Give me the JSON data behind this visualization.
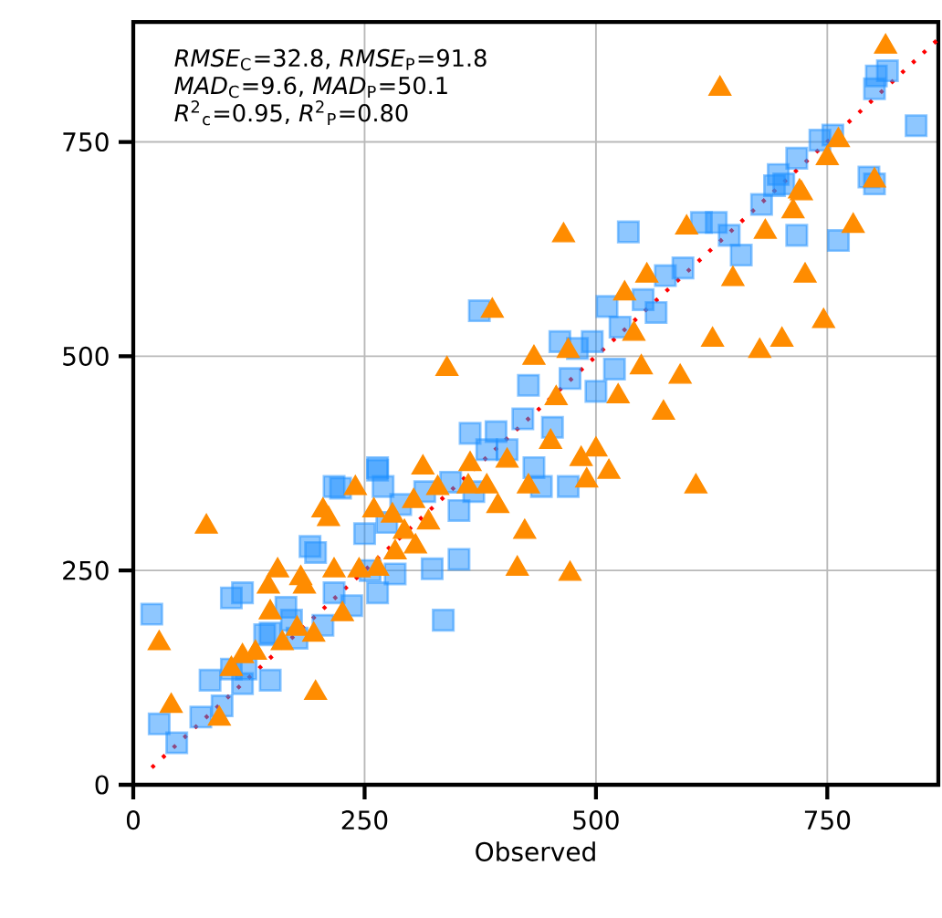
{
  "chart_data": {
    "type": "scatter",
    "xlabel": "Observed",
    "xlim": [
      0,
      870
    ],
    "ylim": [
      0,
      890
    ],
    "xticks": [
      0,
      250,
      500,
      750
    ],
    "yticks": [
      0,
      250,
      500,
      750
    ],
    "grid": true,
    "annotations": [
      "*RMSE*$_{C}$=32.8, *RMSE*$_{P}$=91.8",
      "*MAD*$_{C}$=9.6, *MAD*$_{P}$=50.1",
      "*R*$^{2}$$_{c}$=0.95, *R*$^{2}$$_{P}$=0.80"
    ],
    "series": [
      {
        "type": "scatter",
        "marker": "square",
        "color": "#1e90ff",
        "x": [
          803,
          815,
          846,
          742,
          756,
          717,
          697,
          795,
          801,
          693,
          703,
          679,
          630,
          614,
          644,
          717,
          657,
          762,
          801,
          535,
          594,
          575,
          551,
          565,
          512,
          374,
          526,
          496,
          480,
          461,
          520,
          427,
          472,
          500,
          421,
          453,
          364,
          392,
          404,
          433,
          264,
          217,
          270,
          470,
          441,
          382,
          352,
          335,
          323,
          20,
          28,
          47,
          73,
          83,
          106,
          148,
          118,
          96,
          106,
          118,
          191,
          197,
          177,
          148,
          171,
          205,
          236,
          264,
          256,
          283,
          250,
          274,
          289,
          315,
          343,
          352,
          368,
          264,
          217,
          165,
          224,
          142,
          122
        ],
        "values": [
          827,
          833,
          769,
          752,
          758,
          731,
          712,
          709,
          812,
          699,
          701,
          677,
          656,
          656,
          641,
          641,
          618,
          635,
          701,
          645,
          603,
          594,
          566,
          551,
          558,
          553,
          534,
          517,
          509,
          517,
          485,
          466,
          474,
          459,
          427,
          417,
          410,
          412,
          391,
          370,
          370,
          348,
          348,
          348,
          348,
          391,
          263,
          192,
          252,
          199,
          71,
          49,
          79,
          122,
          135,
          122,
          118,
          92,
          218,
          224,
          278,
          271,
          171,
          177,
          192,
          186,
          209,
          224,
          250,
          246,
          293,
          306,
          327,
          342,
          353,
          320,
          342,
          367,
          224,
          207,
          346,
          175,
          135
        ]
      },
      {
        "type": "scatter",
        "marker": "triangle",
        "color": "#ff8c00",
        "x": [
          634,
          813,
          762,
          750,
          801,
          722,
          465,
          598,
          683,
          713,
          720,
          778,
          726,
          648,
          555,
          531,
          541,
          388,
          339,
          433,
          470,
          457,
          549,
          591,
          626,
          677,
          701,
          746,
          524,
          573,
          451,
          484,
          500,
          514,
          490,
          608,
          404,
          364,
          313,
          427,
          240,
          329,
          362,
          382,
          260,
          205,
          211,
          280,
          303,
          319,
          293,
          305,
          283,
          264,
          244,
          217,
          394,
          423,
          415,
          472,
          79,
          156,
          181,
          146,
          185,
          148,
          226,
          177,
          195,
          161,
          132,
          118,
          106,
          28,
          197,
          41,
          93
        ],
        "values": [
          812,
          861,
          752,
          731,
          705,
          690,
          641,
          650,
          645,
          669,
          692,
          652,
          594,
          590,
          594,
          573,
          526,
          553,
          485,
          498,
          506,
          451,
          487,
          476,
          519,
          506,
          519,
          541,
          453,
          434,
          400,
          380,
          391,
          365,
          355,
          348,
          378,
          374,
          370,
          348,
          346,
          346,
          348,
          348,
          320,
          320,
          310,
          314,
          331,
          306,
          295,
          278,
          271,
          252,
          250,
          250,
          325,
          295,
          252,
          246,
          301,
          250,
          241,
          231,
          231,
          201,
          199,
          182,
          175,
          165,
          154,
          150,
          135,
          165,
          107,
          92,
          77
        ]
      },
      {
        "type": "line",
        "line_style": "dotted",
        "marker": "none",
        "color": "#ff0000",
        "x": [
          20,
          870
        ],
        "values": [
          20,
          870
        ]
      }
    ]
  }
}
